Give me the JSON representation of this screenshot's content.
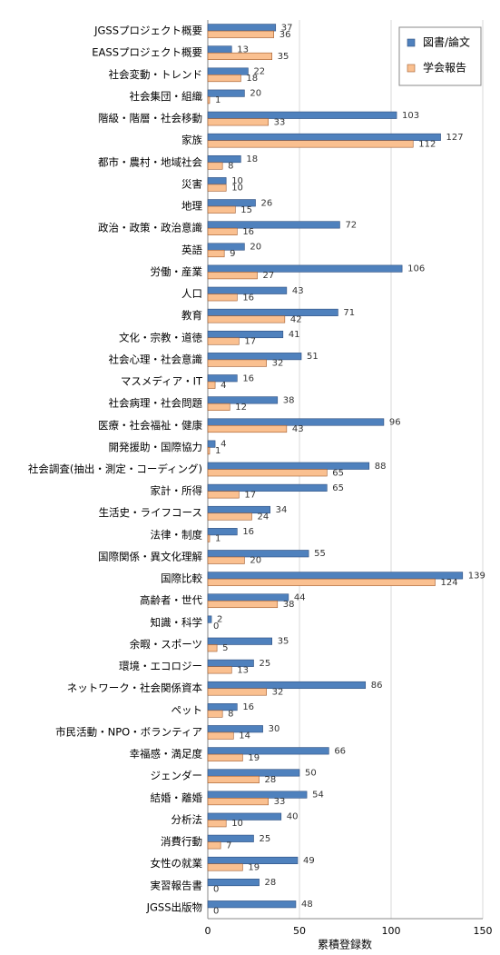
{
  "chart_data": {
    "type": "bar",
    "orientation": "horizontal",
    "x_label": "累積登録数",
    "categories": [
      "JGSSプロジェクト概要",
      "EASSプロジェクト概要",
      "社会変動・トレンド",
      "社会集団・組織",
      "階級・階層・社会移動",
      "家族",
      "都市・農村・地域社会",
      "災害",
      "地理",
      "政治・政策・政治意識",
      "英語",
      "労働・産業",
      "人口",
      "教育",
      "文化・宗教・道徳",
      "社会心理・社会意識",
      "マスメディア・IT",
      "社会病理・社会問題",
      "医療・社会福祉・健康",
      "開発援助・国際協力",
      "社会調査(抽出・測定・コーディング)",
      "家計・所得",
      "生活史・ライフコース",
      "法律・制度",
      "国際関係・異文化理解",
      "国際比較",
      "高齢者・世代",
      "知識・科学",
      "余暇・スポーツ",
      "環境・エコロジー",
      "ネットワーク・社会関係資本",
      "ペット",
      "市民活動・NPO・ボランティア",
      "幸福感・満足度",
      "ジェンダー",
      "結婚・離婚",
      "分析法",
      "消費行動",
      "女性の就業",
      "実習報告書",
      "JGSS出版物"
    ],
    "series": [
      {
        "name": "図書/論文",
        "color": "#4f81bd",
        "values": [
          37,
          13,
          22,
          20,
          103,
          127,
          18,
          10,
          26,
          72,
          20,
          106,
          43,
          71,
          41,
          51,
          16,
          38,
          96,
          4,
          88,
          65,
          34,
          16,
          55,
          139,
          44,
          2,
          35,
          25,
          86,
          16,
          30,
          66,
          50,
          54,
          40,
          25,
          49,
          28,
          48
        ]
      },
      {
        "name": "学会報告",
        "color": "#fac090",
        "values": [
          36,
          35,
          18,
          1,
          33,
          112,
          8,
          10,
          15,
          16,
          9,
          27,
          16,
          42,
          17,
          32,
          4,
          12,
          43,
          1,
          65,
          17,
          24,
          1,
          20,
          124,
          38,
          0,
          5,
          13,
          32,
          8,
          14,
          19,
          28,
          33,
          10,
          7,
          19,
          0,
          0
        ]
      }
    ],
    "xlim": [
      0,
      150
    ],
    "xticks": [
      0,
      50,
      100,
      150
    ],
    "grid": true,
    "legend": "top-right"
  }
}
